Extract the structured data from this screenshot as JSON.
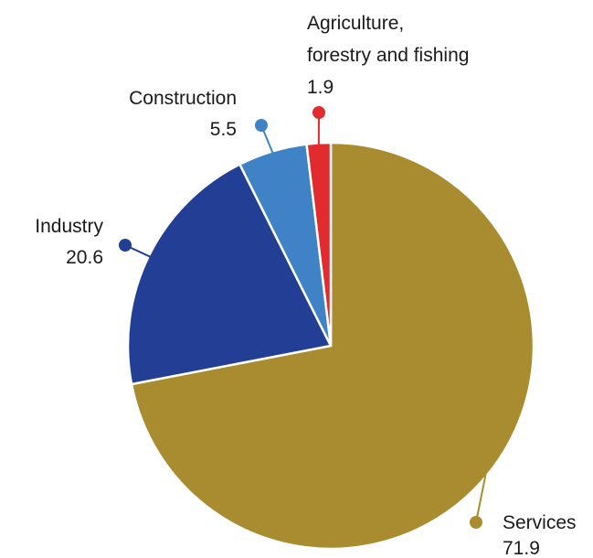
{
  "chart_data": {
    "type": "pie",
    "title": "",
    "unit": "",
    "slices": [
      {
        "name": "Services",
        "value": 71.9,
        "value_label": "71.9",
        "color": "#a98c2f"
      },
      {
        "name": "Industry",
        "value": 20.6,
        "value_label": "20.6",
        "color": "#223f95"
      },
      {
        "name": "Construction",
        "value": 5.5,
        "value_label": "5.5",
        "color": "#3f83c6"
      },
      {
        "name": "Agriculture, forestry and fishing",
        "name_lines": [
          "Agriculture,",
          "forestry and fishing"
        ],
        "value": 1.9,
        "value_label": "1.9",
        "color": "#e12b2f"
      }
    ],
    "start": "top",
    "direction": "clockwise",
    "slice_borders": "white",
    "legend": "none",
    "labels": "outside, with leader dots"
  }
}
